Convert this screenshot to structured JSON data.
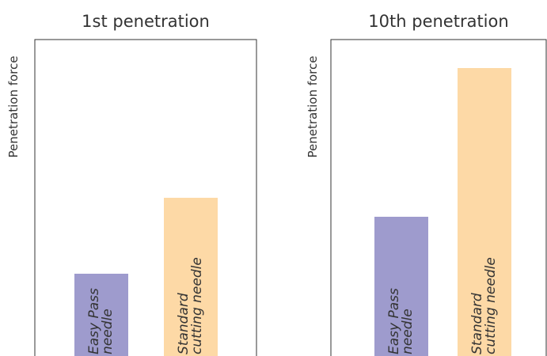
{
  "chart_data": [
    {
      "type": "bar",
      "title": "1st penetration",
      "ylabel": "Penetration force",
      "categories": [
        "Easy Pass needle",
        "Standard cutting needle"
      ],
      "bar_label_lines": [
        [
          "Easy Pass",
          "needle"
        ],
        [
          "Standard",
          "cutting needle"
        ]
      ],
      "values": [
        26,
        50
      ],
      "ylim": [
        0,
        100
      ],
      "colors": [
        "#9e9bcd",
        "#fdd9a6"
      ],
      "grid": false,
      "y_ticks_shown": false
    },
    {
      "type": "bar",
      "title": "10th penetration",
      "ylabel": "Penetration force",
      "categories": [
        "Easy Pass needle",
        "Standard cutting needle"
      ],
      "bar_label_lines": [
        [
          "Easy Pass",
          "needle"
        ],
        [
          "Standard",
          "cutting needle"
        ]
      ],
      "values": [
        44,
        91
      ],
      "ylim": [
        0,
        100
      ],
      "colors": [
        "#9e9bcd",
        "#fdd9a6"
      ],
      "grid": false,
      "y_ticks_shown": false
    }
  ]
}
